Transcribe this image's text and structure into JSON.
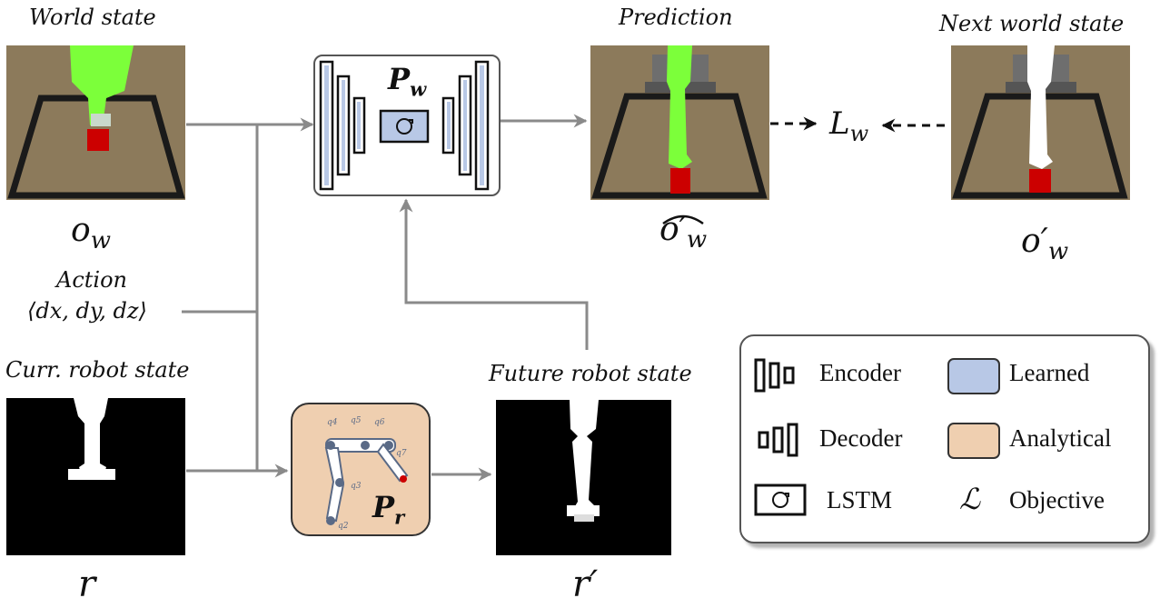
{
  "captions": {
    "world_state": "World state",
    "prediction": "Prediction",
    "next_world_state": "Next world state",
    "curr_robot_state": "Curr. robot state",
    "future_robot_state": "Future robot state",
    "action": "Action",
    "action_tuple": "⟨dx, dy, dz⟩"
  },
  "symbols": {
    "o_w": "o",
    "o_w_sub": "w",
    "o_w_hat": "o′",
    "o_w_hat_sub": "w",
    "o_w_prime": "o′",
    "o_w_prime_sub": "w",
    "r": "r",
    "r_prime": "r′",
    "loss": "L",
    "loss_sub": "w"
  },
  "modules": {
    "world_model": {
      "label": "P",
      "sub": "w"
    },
    "robot_model": {
      "label": "P",
      "sub": "r"
    }
  },
  "joint_labels": [
    "q4",
    "q5",
    "q6",
    "q7",
    "q3",
    "q2"
  ],
  "legend": {
    "encoder": "Encoder",
    "decoder": "Decoder",
    "lstm": "LSTM",
    "learned": "Learned",
    "analytical": "Analytical",
    "objective": "Objective",
    "objective_symbol": "ℒ"
  },
  "colors": {
    "arrow": "#8a8a8a",
    "learned_fill": "#b8c8e6",
    "analytical_fill": "#efcfb0",
    "scene_floor": "#8c7a5b",
    "robot_green": "#7cff3a",
    "cube_red": "#cc0000"
  }
}
